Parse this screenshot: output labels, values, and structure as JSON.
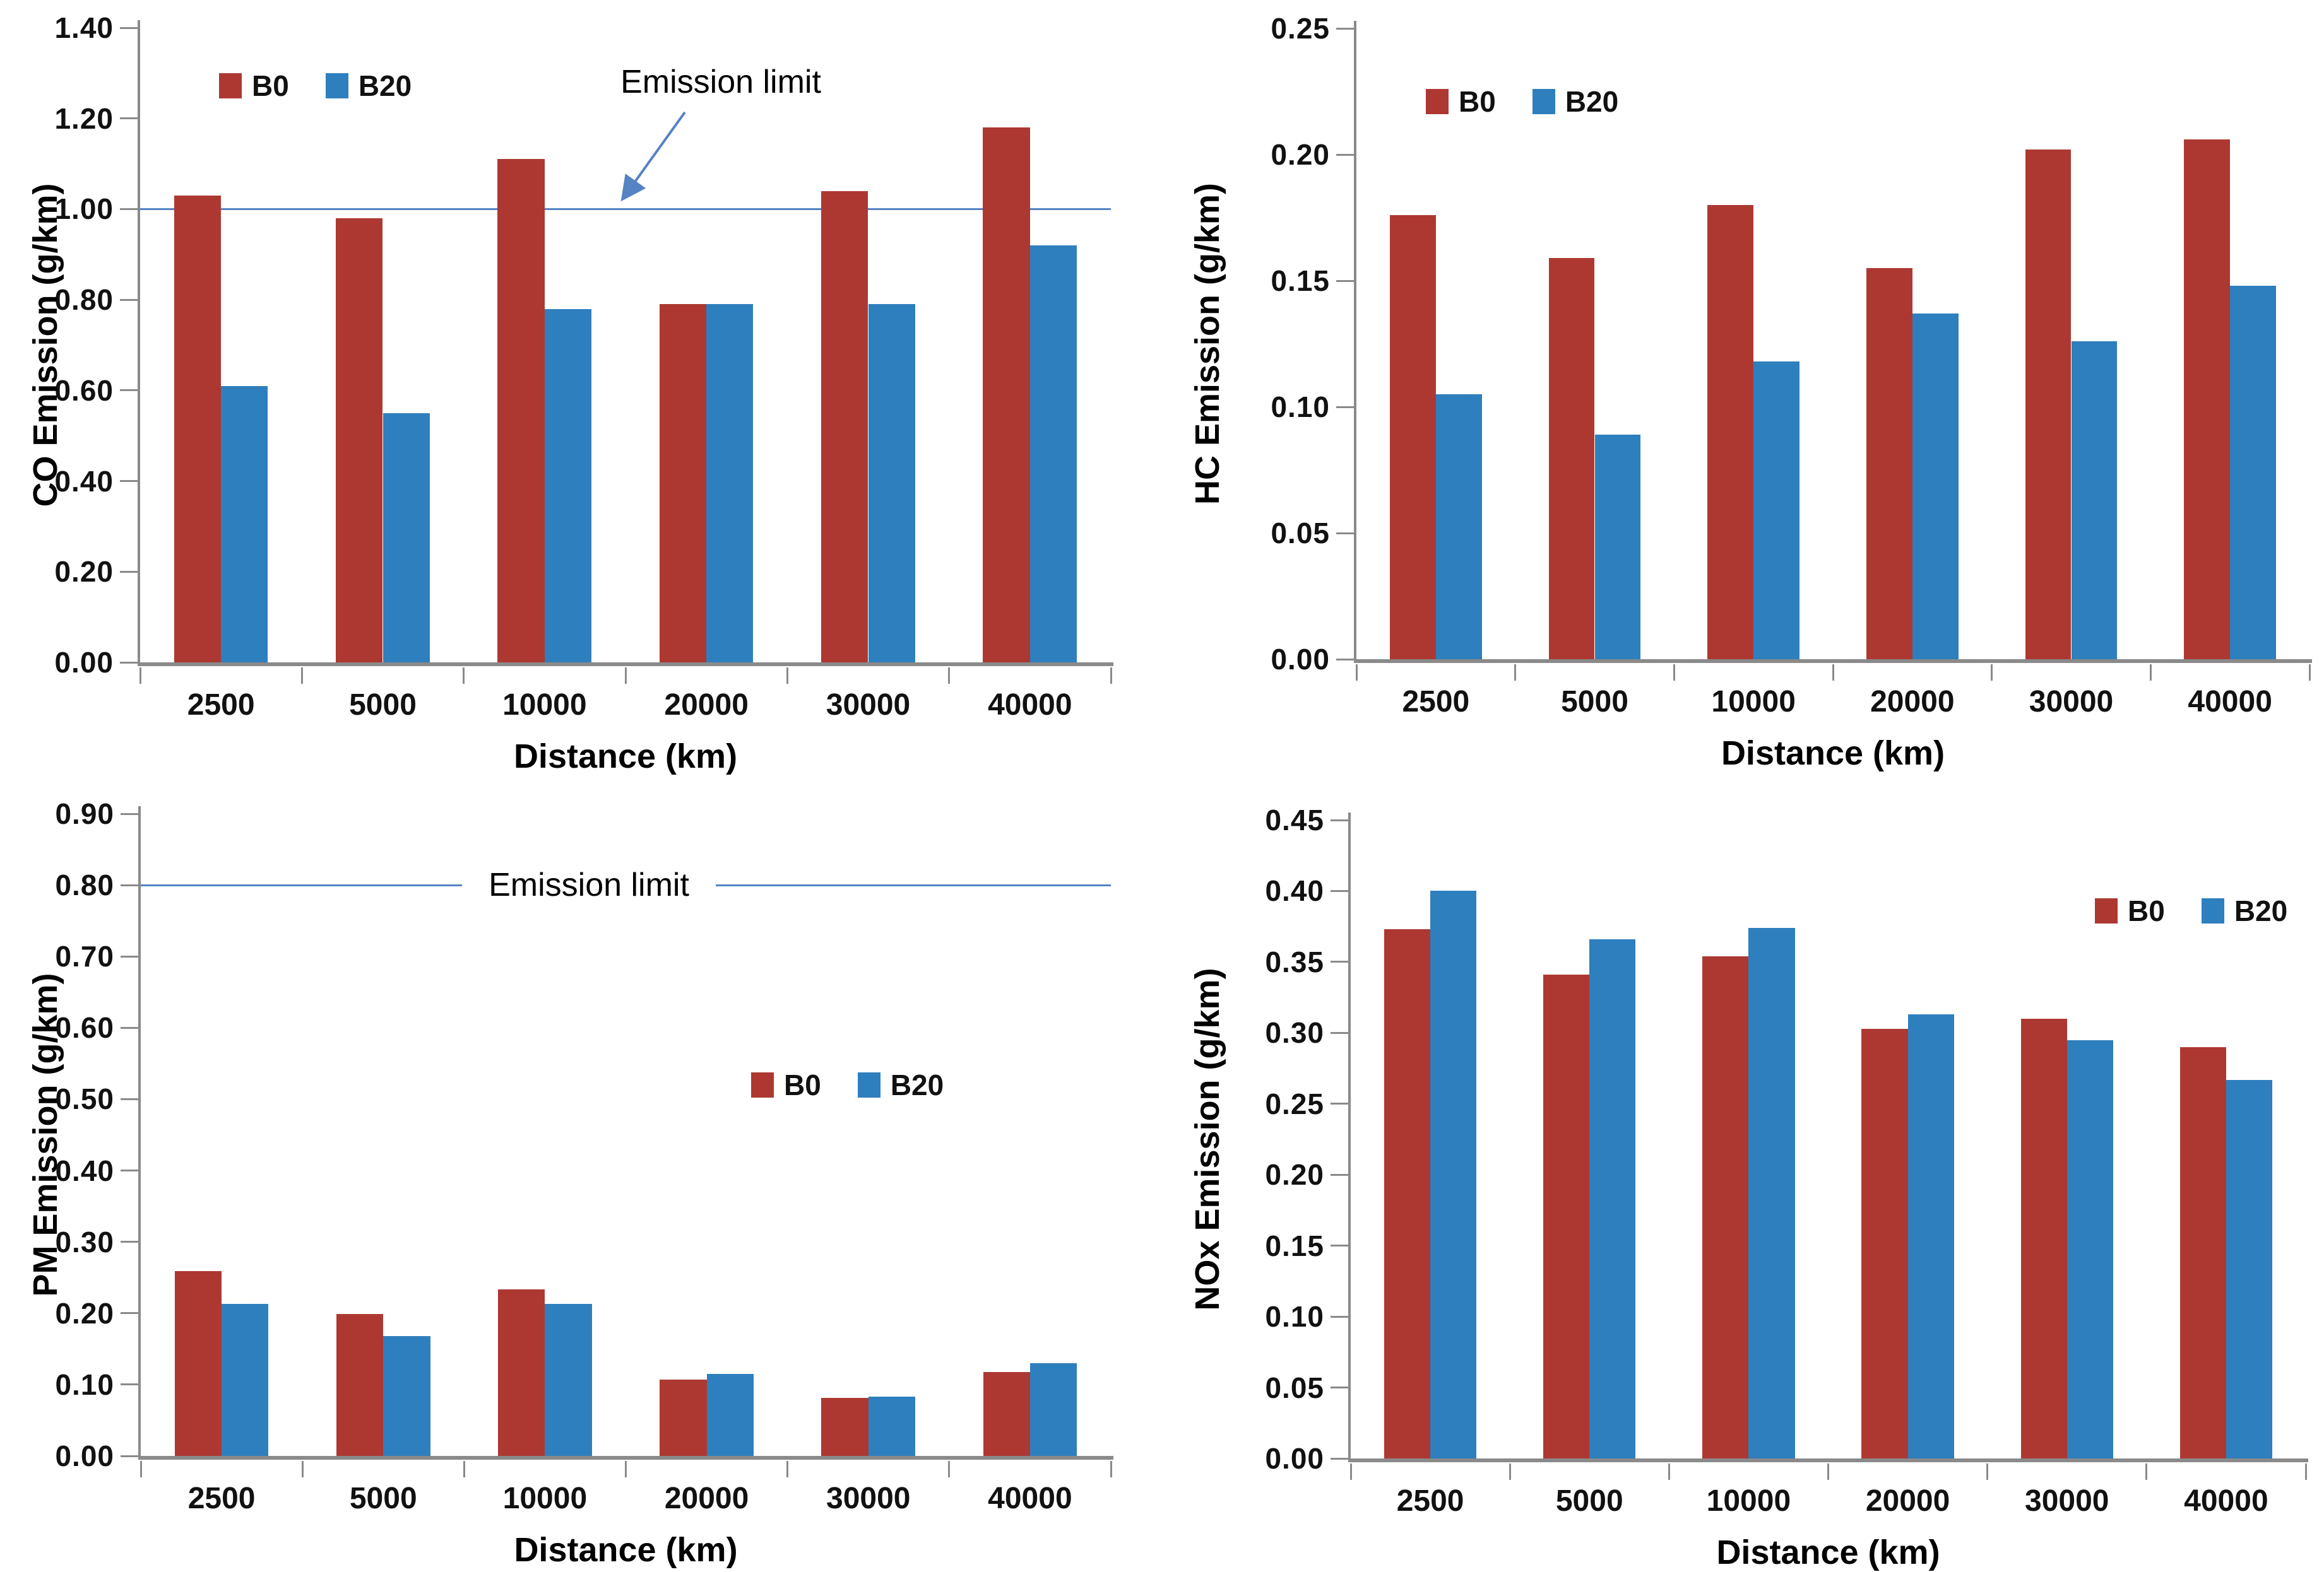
{
  "figure": {
    "background": "#ffffff"
  },
  "colors": {
    "b0": "#AD3832",
    "b20": "#2E7FBD",
    "limit_line": "#5583C4",
    "axis_line": "#8A8A8A",
    "text": "#111111"
  },
  "legend_labels": {
    "b0": "B0",
    "b20": "B20"
  },
  "chart_data": [
    {
      "id": "co",
      "type": "bar",
      "ylabel": "CO Emission (g/km)",
      "xlabel": "Distance (km)",
      "ylim": [
        0,
        1.4
      ],
      "ytick_step": 0.2,
      "grid": false,
      "categories": [
        "2500",
        "5000",
        "10000",
        "20000",
        "30000",
        "40000"
      ],
      "series": [
        {
          "name": "B0",
          "color_key": "b0",
          "values": [
            1.03,
            0.98,
            1.11,
            0.79,
            1.04,
            1.18
          ]
        },
        {
          "name": "B20",
          "color_key": "b20",
          "values": [
            0.61,
            0.55,
            0.78,
            0.79,
            0.79,
            0.92
          ]
        }
      ],
      "legend_position": "top-left",
      "emission_limit": {
        "value": 1.0,
        "label": "Emission limit",
        "annotation": "arrow"
      }
    },
    {
      "id": "hc",
      "type": "bar",
      "ylabel": "HC Emission (g/km)",
      "xlabel": "Distance (km)",
      "ylim": [
        0,
        0.25
      ],
      "ytick_step": 0.05,
      "grid": false,
      "categories": [
        "2500",
        "5000",
        "10000",
        "20000",
        "30000",
        "40000"
      ],
      "series": [
        {
          "name": "B0",
          "color_key": "b0",
          "values": [
            0.176,
            0.159,
            0.18,
            0.155,
            0.202,
            0.206
          ]
        },
        {
          "name": "B20",
          "color_key": "b20",
          "values": [
            0.105,
            0.089,
            0.118,
            0.137,
            0.126,
            0.148
          ]
        }
      ],
      "legend_position": "top-left",
      "emission_limit": null
    },
    {
      "id": "pm",
      "type": "bar",
      "ylabel": "PM Emission (g/km)",
      "xlabel": "Distance (km)",
      "ylim": [
        0,
        0.9
      ],
      "ytick_step": 0.1,
      "grid": false,
      "categories": [
        "2500",
        "5000",
        "10000",
        "20000",
        "30000",
        "40000"
      ],
      "series": [
        {
          "name": "B0",
          "color_key": "b0",
          "values": [
            0.259,
            0.199,
            0.233,
            0.107,
            0.081,
            0.118
          ]
        },
        {
          "name": "B20",
          "color_key": "b20",
          "values": [
            0.213,
            0.168,
            0.213,
            0.115,
            0.083,
            0.13
          ]
        }
      ],
      "legend_position": "mid-right",
      "emission_limit": {
        "value": 0.8,
        "label": "Emission limit",
        "annotation": "on-line"
      }
    },
    {
      "id": "nox",
      "type": "bar",
      "ylabel": "NOx Emission (g/km)",
      "xlabel": "Distance (km)",
      "ylim": [
        0,
        0.45
      ],
      "ytick_step": 0.05,
      "grid": false,
      "categories": [
        "2500",
        "5000",
        "10000",
        "20000",
        "30000",
        "40000"
      ],
      "series": [
        {
          "name": "B0",
          "color_key": "b0",
          "values": [
            0.373,
            0.341,
            0.354,
            0.303,
            0.31,
            0.29
          ]
        },
        {
          "name": "B20",
          "color_key": "b20",
          "values": [
            0.4,
            0.366,
            0.374,
            0.313,
            0.295,
            0.267
          ]
        }
      ],
      "legend_position": "top-right",
      "emission_limit": null
    }
  ]
}
